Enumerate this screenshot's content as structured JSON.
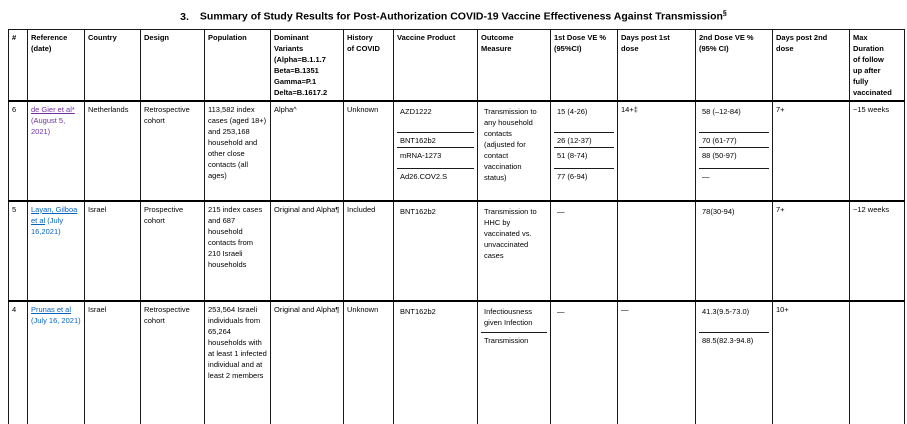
{
  "title": {
    "number": "3.",
    "text": "Summary of Study Results for Post-Authorization COVID-19 Vaccine Effectiveness Against Transmission",
    "footnote_mark": "§"
  },
  "colors": {
    "link_blue": "#0563C1",
    "link_visited": "#7030A0",
    "border": "#000000",
    "text": "#000000"
  },
  "table": {
    "headers": [
      "#",
      "Reference\n(date)",
      "Country",
      "Design",
      "Population",
      "Dominant\nVariants\n(Alpha=B.1.1.7\nBeta=B.1351\nGamma=P.1\nDelta=B.1617.2",
      "History\nof COVID",
      "Vaccine Product",
      "Outcome\nMeasure",
      "1st Dose VE %\n(95%CI)",
      "Days post 1st\ndose",
      "2nd Dose VE %\n(95% CI)",
      "Days post 2nd\ndose",
      "Max\nDuration\nof follow\nup after\nfully\nvaccinated"
    ],
    "rows": [
      {
        "num": "6",
        "reference": {
          "link": "de Gier et al*",
          "date": "(August 5, 2021)"
        },
        "country": "Netherlands",
        "design": "Retrospective cohort",
        "population": "113,582 index cases (aged 18+) and 253,168 household and other close contacts (all ages)",
        "variants": "Alpha^",
        "history": "Unknown",
        "vaccines": [
          "AZD1222",
          "BNT162b2",
          "mRNA-1273",
          "Ad26.COV2.S"
        ],
        "outcome": [
          "Transmission to any household contacts (adjusted for contact vaccination status)"
        ],
        "ve_dose1": [
          "15 (4-26)",
          "26 (12-37)",
          "51 (8-74)",
          "77 (6-94)"
        ],
        "days_post_dose1": "14+‡",
        "ve_dose2": [
          "58 (–12-84)",
          "70 (61-77)",
          "88 (50-97)",
          "—"
        ],
        "days_post_dose2": "7+",
        "max_duration": "~15 weeks"
      },
      {
        "num": "5",
        "reference": {
          "link": "Layan, Gilboa et al",
          "date": "(July 16,2021)"
        },
        "country": "Israel",
        "design": "Prospective cohort",
        "population": "215 index cases and 687 household contacts from 210 Israeli households",
        "variants": "Original and Alpha¶",
        "history": "Included",
        "vaccines": [
          "BNT162b2"
        ],
        "outcome": [
          "Transmission to HHC by vaccinated vs. unvaccinated cases"
        ],
        "ve_dose1": [
          "—"
        ],
        "days_post_dose1": "",
        "ve_dose2": [
          "78(30-94)"
        ],
        "days_post_dose2": "7+",
        "max_duration": "~12 weeks"
      },
      {
        "num": "4",
        "reference": {
          "link": "Prunas et al",
          "date": "(July 16, 2021)"
        },
        "country": "Israel",
        "design": "Retrospective cohort",
        "population": "253,564 Israeli individuals from 65,264 households with at least 1 infected individual and at least 2 members",
        "variants": "Original and Alpha¶",
        "history": "Unknown",
        "vaccines": [
          "BNT162b2"
        ],
        "outcome": [
          "Infectiousness given Infection",
          "Transmission"
        ],
        "ve_dose1": [
          "—"
        ],
        "days_post_dose1": "—",
        "ve_dose2": [
          "41.3(9.5-73.0)",
          "88.5(82.3-94.8)"
        ],
        "days_post_dose2": "10+",
        "max_duration": ""
      }
    ]
  }
}
